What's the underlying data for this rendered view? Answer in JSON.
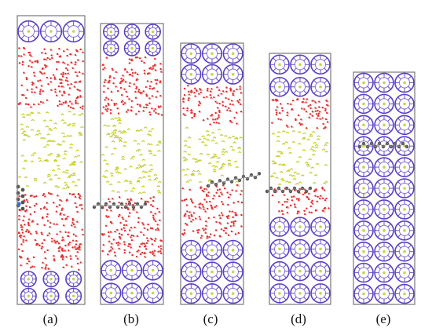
{
  "figure": {
    "panels": [
      {
        "label": "(a)",
        "layers": [
          "zeolite",
          "water",
          "oil",
          "water",
          "zeolite"
        ],
        "molecule": "left-edge-vertical"
      },
      {
        "label": "(b)",
        "layers": [
          "zeolite",
          "water",
          "oil",
          "water",
          "zeolite"
        ],
        "molecule": "left-horizontal"
      },
      {
        "label": "(c)",
        "layers": [
          "zeolite",
          "water",
          "oil",
          "water",
          "zeolite"
        ],
        "molecule": "oil-water-interface-diagonal"
      },
      {
        "label": "(d)",
        "layers": [
          "zeolite",
          "water",
          "oil",
          "water",
          "zeolite"
        ],
        "molecule": "oil-water-interface-horizontal"
      },
      {
        "label": "(e)",
        "layers": [
          "zeolite"
        ],
        "molecule": "inside-zeolite"
      }
    ],
    "colors": {
      "zeolite_ring": "#5b3fc4",
      "zeolite_accent": "#8a7ad8",
      "zeolite_atom": "#c8d44a",
      "water_o": "#e03030",
      "water_h": "#f0a0a0",
      "oil": "#c6cf2e",
      "molecule": "#555555",
      "molecule_blue": "#3d6bd6",
      "box": "#777777"
    }
  }
}
